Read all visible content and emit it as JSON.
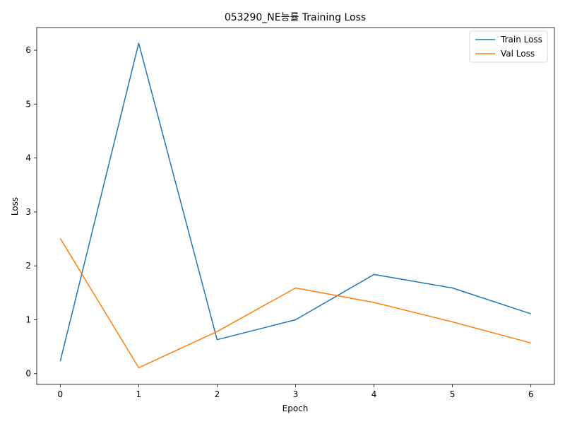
{
  "chart_data": {
    "type": "line",
    "title": "053290_NE능률 Training Loss",
    "xlabel": "Epoch",
    "ylabel": "Loss",
    "x": [
      0,
      1,
      2,
      3,
      4,
      5,
      6
    ],
    "xticks": [
      "0",
      "1",
      "2",
      "3",
      "4",
      "5",
      "6"
    ],
    "yticks": [
      "0",
      "1",
      "2",
      "3",
      "4",
      "5",
      "6"
    ],
    "xlim": [
      -0.3,
      6.3
    ],
    "ylim": [
      -0.2,
      6.42
    ],
    "grid": false,
    "legend_position": "top-right",
    "series": [
      {
        "name": "Train Loss",
        "color": "#1f77b4",
        "values": [
          0.23,
          6.13,
          0.63,
          1.0,
          1.84,
          1.59,
          1.11
        ]
      },
      {
        "name": "Val Loss",
        "color": "#ff7f0e",
        "values": [
          2.51,
          0.11,
          0.78,
          1.59,
          1.32,
          0.96,
          0.57
        ]
      }
    ]
  }
}
